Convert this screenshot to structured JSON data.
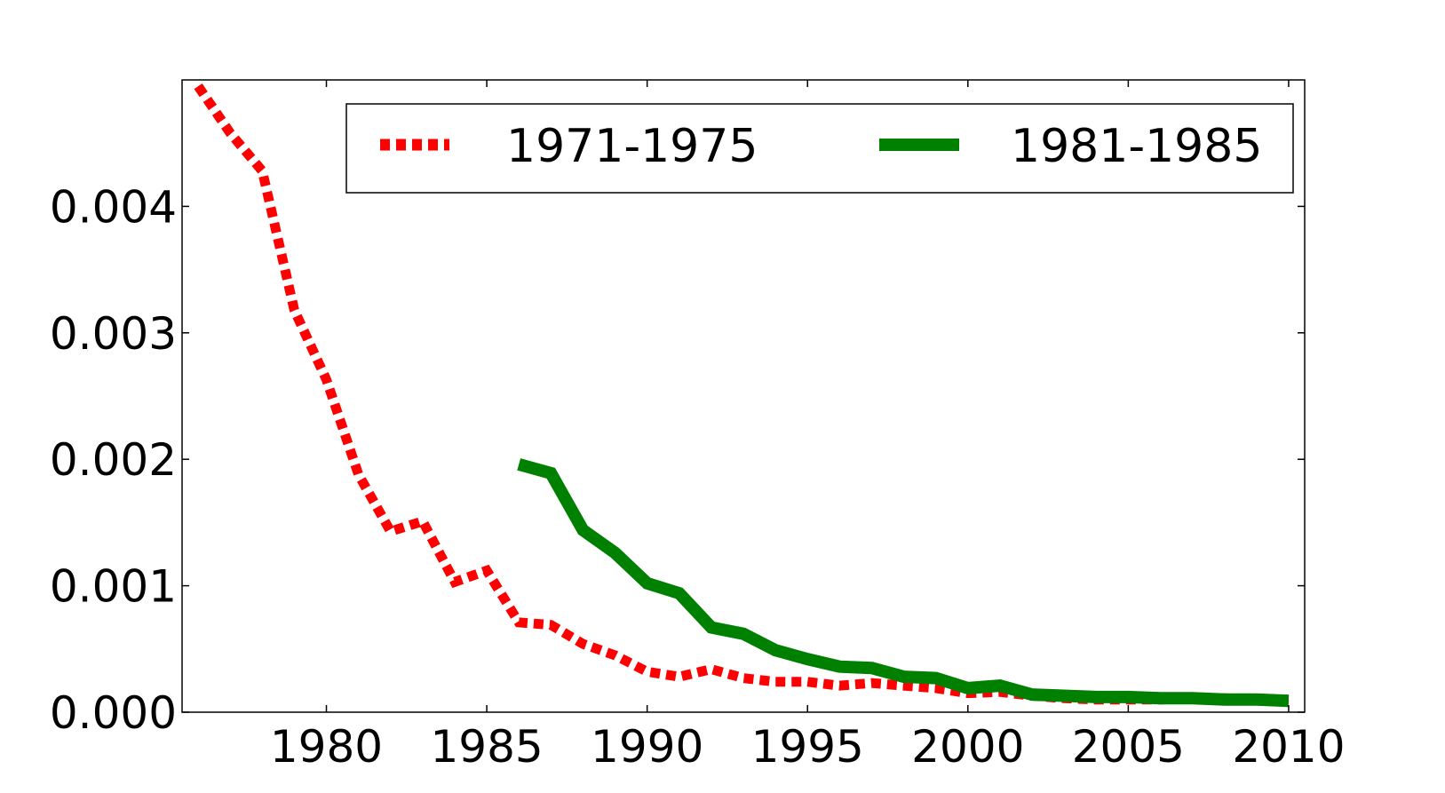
{
  "chart_data": {
    "type": "line",
    "title": "",
    "xlabel": "",
    "ylabel": "",
    "xlim": [
      1975.5,
      2010.5
    ],
    "ylim": [
      0,
      0.005
    ],
    "x_ticks": [
      1980,
      1985,
      1990,
      1995,
      2000,
      2005,
      2010
    ],
    "x_tick_labels": [
      "1980",
      "1985",
      "1990",
      "1995",
      "2000",
      "2005",
      "2010"
    ],
    "y_ticks": [
      0,
      0.001,
      0.002,
      0.003,
      0.004
    ],
    "y_tick_labels": [
      "0.000",
      "0.001",
      "0.002",
      "0.003",
      "0.004"
    ],
    "grid": false,
    "legend_position": "top",
    "series": [
      {
        "name": "1971-1975",
        "color": "#ff0000",
        "style": "dotted",
        "x": [
          1976,
          1977,
          1978,
          1979,
          1980,
          1981,
          1982,
          1983,
          1984,
          1985,
          1986,
          1987,
          1988,
          1989,
          1990,
          1991,
          1992,
          1993,
          1994,
          1995,
          1996,
          1997,
          1998,
          1999,
          2000,
          2001,
          2002,
          2003,
          2004,
          2005,
          2006,
          2007,
          2008,
          2009,
          2010
        ],
        "values": [
          0.00495,
          0.00458,
          0.00428,
          0.00318,
          0.00263,
          0.00188,
          0.00143,
          0.00151,
          0.00103,
          0.00112,
          0.00071,
          0.00069,
          0.00054,
          0.00045,
          0.00032,
          0.00028,
          0.00034,
          0.00027,
          0.00024,
          0.00024,
          0.00021,
          0.00023,
          0.00021,
          0.00019,
          0.00015,
          0.00016,
          0.00013,
          0.00011,
          0.0001,
          0.0001,
          0.0001,
          0.00011,
          0.00011,
          0.0001,
          0.0001
        ]
      },
      {
        "name": "1981-1985",
        "color": "#008000",
        "style": "solid",
        "x": [
          1986,
          1987,
          1988,
          1989,
          1990,
          1991,
          1992,
          1993,
          1994,
          1995,
          1996,
          1997,
          1998,
          1999,
          2000,
          2001,
          2002,
          2003,
          2004,
          2005,
          2006,
          2007,
          2008,
          2009,
          2010
        ],
        "values": [
          0.00196,
          0.00189,
          0.00144,
          0.00126,
          0.00102,
          0.00094,
          0.00067,
          0.00062,
          0.00049,
          0.00042,
          0.00036,
          0.00035,
          0.00028,
          0.00027,
          0.00019,
          0.00021,
          0.00014,
          0.00013,
          0.00012,
          0.00012,
          0.00011,
          0.00011,
          0.0001,
          0.0001,
          9e-05
        ]
      }
    ]
  }
}
